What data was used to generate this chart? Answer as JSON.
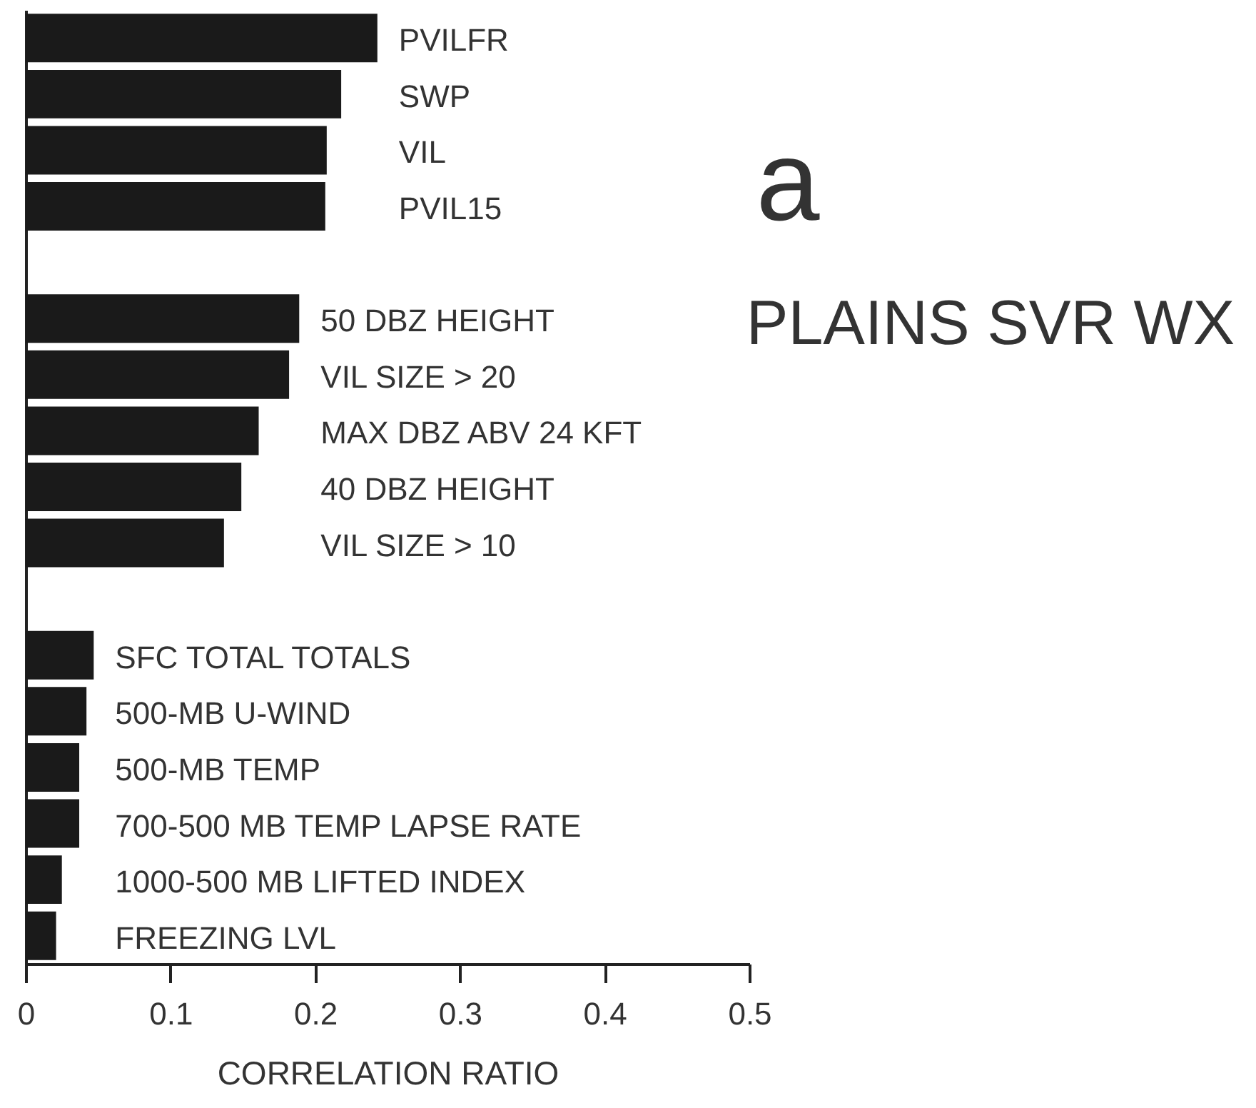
{
  "chart_data": {
    "type": "bar",
    "orientation": "horizontal",
    "title": "PLAINS SVR WX",
    "annotations": [
      "a"
    ],
    "xlabel": "CORRELATION RATIO",
    "categories": [
      "PVILFR",
      "SWP",
      "VIL",
      "PVIL15",
      null,
      "50 DBZ HEIGHT",
      "VIL SIZE > 20",
      "MAX DBZ ABV 24 KFT",
      "40 DBZ HEIGHT",
      "VIL SIZE > 10",
      null,
      "SFC TOTAL TOTALS",
      "500-MB U-WIND",
      "500-MB TEMP",
      "700-500 MB TEMP LAPSE RATE",
      "1000-500 MB LIFTED INDEX",
      "FREEZING LVL"
    ],
    "values": [
      0.243,
      0.218,
      0.208,
      0.207,
      null,
      0.189,
      0.182,
      0.161,
      0.149,
      0.137,
      null,
      0.047,
      0.042,
      0.037,
      0.037,
      0.025,
      0.021
    ],
    "color": "#1a1a1a",
    "xlim": [
      0,
      0.5
    ],
    "xticks": [
      0,
      0.1,
      0.2,
      0.3,
      0.4,
      0.5
    ],
    "tick_labels": "x"
  }
}
